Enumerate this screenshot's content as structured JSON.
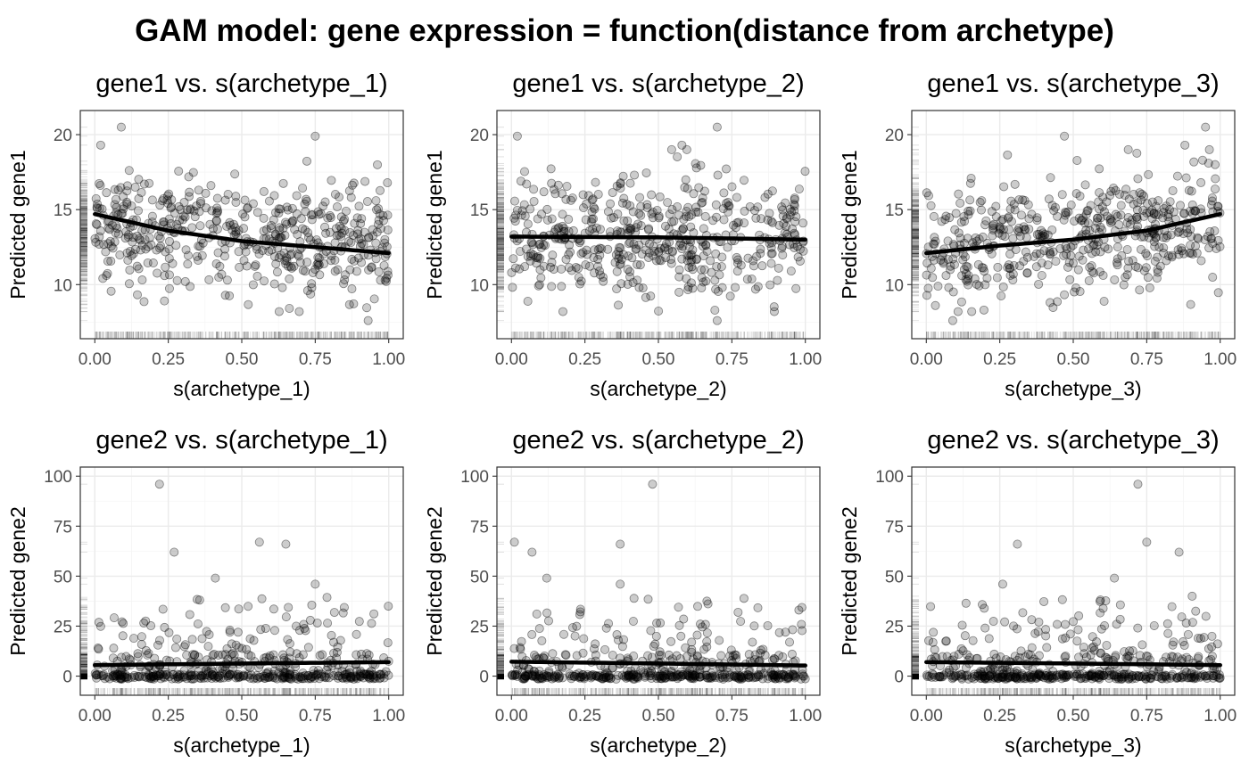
{
  "title": "GAM model: gene expression = function(distance from archetype)",
  "chart_data": [
    {
      "type": "scatter",
      "row": 0,
      "col": 0,
      "title": "gene1  vs. s(archetype_1)",
      "xlabel": "s(archetype_1)",
      "ylabel": "Predicted gene1",
      "xlim": [
        0,
        1
      ],
      "ylim": [
        7,
        21
      ],
      "x_ticks": [
        0,
        0.25,
        0.5,
        0.75,
        1
      ],
      "x_tick_labels": [
        "0.00",
        "0.25",
        "0.50",
        "0.75",
        "1.00"
      ],
      "y_ticks": [
        10,
        15,
        20
      ],
      "y_tick_labels": [
        "10",
        "15",
        "20"
      ],
      "point_center": 13.3,
      "point_spread": 1.9,
      "n_points": 500,
      "outliers": [
        [
          0.09,
          20.5
        ],
        [
          0.75,
          19.9
        ],
        [
          0.02,
          19.3
        ],
        [
          0.93,
          7.6
        ]
      ],
      "smooth": [
        [
          0,
          14.7
        ],
        [
          0.25,
          13.6
        ],
        [
          0.5,
          12.9
        ],
        [
          0.75,
          12.5
        ],
        [
          1,
          12.1
        ]
      ]
    },
    {
      "type": "scatter",
      "row": 0,
      "col": 1,
      "title": "gene1  vs. s(archetype_2)",
      "xlabel": "s(archetype_2)",
      "ylabel": "Predicted gene1",
      "xlim": [
        0,
        1
      ],
      "ylim": [
        7,
        21
      ],
      "x_ticks": [
        0,
        0.25,
        0.5,
        0.75,
        1
      ],
      "x_tick_labels": [
        "0.00",
        "0.25",
        "0.50",
        "0.75",
        "1.00"
      ],
      "y_ticks": [
        10,
        15,
        20
      ],
      "y_tick_labels": [
        "10",
        "15",
        "20"
      ],
      "point_center": 13.2,
      "point_spread": 2.0,
      "n_points": 500,
      "outliers": [
        [
          0.02,
          19.9
        ],
        [
          0.7,
          20.5
        ],
        [
          0.58,
          19.3
        ],
        [
          0.7,
          7.6
        ]
      ],
      "smooth": [
        [
          0,
          13.2
        ],
        [
          0.5,
          13.15
        ],
        [
          1,
          13.0
        ]
      ]
    },
    {
      "type": "scatter",
      "row": 0,
      "col": 2,
      "title": "gene1  vs. s(archetype_3)",
      "xlabel": "s(archetype_3)",
      "ylabel": "Predicted gene1",
      "xlim": [
        0,
        1
      ],
      "ylim": [
        7,
        21
      ],
      "x_ticks": [
        0,
        0.25,
        0.5,
        0.75,
        1
      ],
      "x_tick_labels": [
        "0.00",
        "0.25",
        "0.50",
        "0.75",
        "1.00"
      ],
      "y_ticks": [
        10,
        15,
        20
      ],
      "y_tick_labels": [
        "10",
        "15",
        "20"
      ],
      "point_center": 13.3,
      "point_spread": 1.9,
      "n_points": 500,
      "outliers": [
        [
          0.47,
          19.9
        ],
        [
          0.95,
          20.5
        ],
        [
          0.88,
          19.3
        ],
        [
          0.09,
          7.6
        ]
      ],
      "smooth": [
        [
          0,
          12.1
        ],
        [
          0.25,
          12.6
        ],
        [
          0.5,
          13.0
        ],
        [
          0.75,
          13.6
        ],
        [
          1,
          14.7
        ]
      ]
    },
    {
      "type": "scatter",
      "row": 1,
      "col": 0,
      "title": "gene2  vs. s(archetype_1)",
      "xlabel": "s(archetype_1)",
      "ylabel": "Predicted gene2",
      "xlim": [
        0,
        1
      ],
      "ylim": [
        -5,
        100
      ],
      "x_ticks": [
        0,
        0.25,
        0.5,
        0.75,
        1
      ],
      "x_tick_labels": [
        "0.00",
        "0.25",
        "0.50",
        "0.75",
        "1.00"
      ],
      "y_ticks": [
        0,
        25,
        50,
        75,
        100
      ],
      "y_tick_labels": [
        "0",
        "25",
        "50",
        "75",
        "100"
      ],
      "point_center": 0,
      "point_spread": 0,
      "n_points": 500,
      "outliers": [
        [
          0.22,
          96
        ],
        [
          0.56,
          67
        ],
        [
          0.65,
          66
        ],
        [
          0.27,
          62
        ],
        [
          0.41,
          49
        ],
        [
          0.75,
          46
        ]
      ],
      "smooth": [
        [
          0,
          5.5
        ],
        [
          0.5,
          6.3
        ],
        [
          1,
          7
        ]
      ]
    },
    {
      "type": "scatter",
      "row": 1,
      "col": 1,
      "title": "gene2  vs. s(archetype_2)",
      "xlabel": "s(archetype_2)",
      "ylabel": "Predicted gene2",
      "xlim": [
        0,
        1
      ],
      "ylim": [
        -5,
        100
      ],
      "x_ticks": [
        0,
        0.25,
        0.5,
        0.75,
        1
      ],
      "x_tick_labels": [
        "0.00",
        "0.25",
        "0.50",
        "0.75",
        "1.00"
      ],
      "y_ticks": [
        0,
        25,
        50,
        75,
        100
      ],
      "y_tick_labels": [
        "0",
        "25",
        "50",
        "75",
        "100"
      ],
      "point_center": 0,
      "point_spread": 0,
      "n_points": 500,
      "outliers": [
        [
          0.48,
          96
        ],
        [
          0.01,
          67
        ],
        [
          0.37,
          66
        ],
        [
          0.07,
          62
        ],
        [
          0.12,
          49
        ],
        [
          0.37,
          46
        ]
      ],
      "smooth": [
        [
          0,
          7.2
        ],
        [
          0.5,
          6.3
        ],
        [
          1,
          5.3
        ]
      ]
    },
    {
      "type": "scatter",
      "row": 1,
      "col": 2,
      "title": "gene2  vs. s(archetype_3)",
      "xlabel": "s(archetype_3)",
      "ylabel": "Predicted gene2",
      "xlim": [
        0,
        1
      ],
      "ylim": [
        -5,
        100
      ],
      "x_ticks": [
        0,
        0.25,
        0.5,
        0.75,
        1
      ],
      "x_tick_labels": [
        "0.00",
        "0.25",
        "0.50",
        "0.75",
        "1.00"
      ],
      "y_ticks": [
        0,
        25,
        50,
        75,
        100
      ],
      "y_tick_labels": [
        "0",
        "25",
        "50",
        "75",
        "100"
      ],
      "point_center": 0,
      "point_spread": 0,
      "n_points": 500,
      "outliers": [
        [
          0.72,
          96
        ],
        [
          0.75,
          67
        ],
        [
          0.31,
          66
        ],
        [
          0.86,
          62
        ],
        [
          0.64,
          49
        ],
        [
          0.26,
          46
        ]
      ],
      "smooth": [
        [
          0,
          7
        ],
        [
          0.5,
          6.3
        ],
        [
          1,
          5.5
        ]
      ]
    }
  ],
  "style": {
    "point_color": "#000000",
    "point_alpha": 0.2,
    "line_color": "#000000",
    "grid": true,
    "theme": "bw"
  }
}
